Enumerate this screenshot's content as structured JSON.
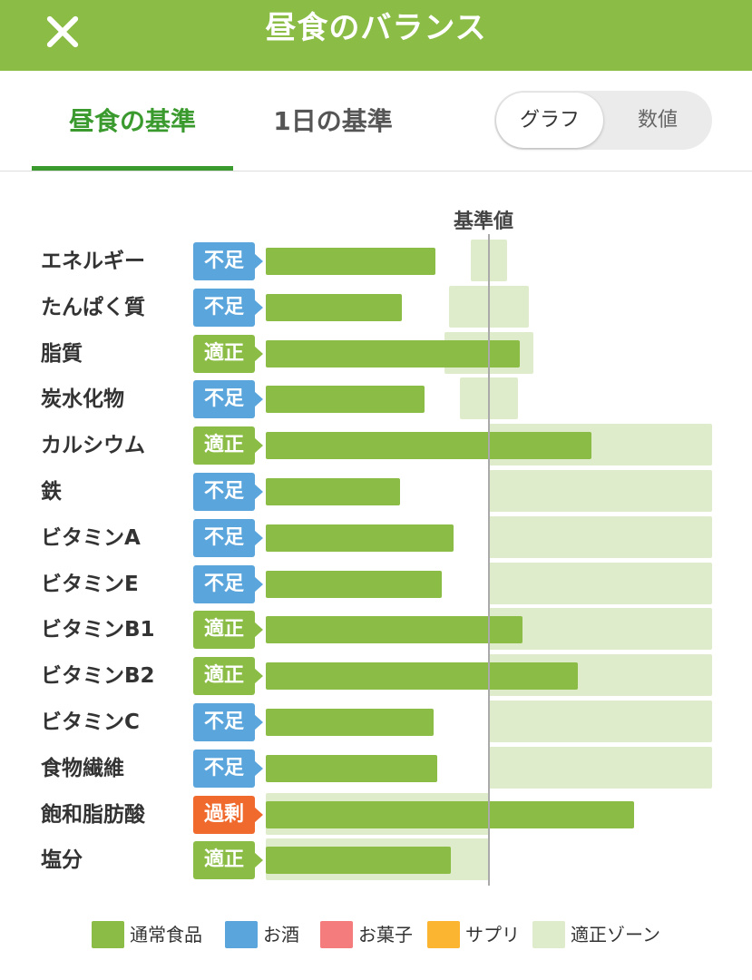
{
  "header": {
    "title": "昼食のバランス"
  },
  "tabs": [
    {
      "label": "昼食の基準",
      "active": true
    },
    {
      "label": "1日の基準",
      "active": false
    }
  ],
  "toggle": {
    "graph_label": "グラフ",
    "value_label": "数値",
    "selected": "グラフ"
  },
  "colors": {
    "header": "#8bbc45",
    "accent": "#3a9a2e",
    "shortage": "#5aa5dc",
    "adequate": "#8bbc45",
    "excess": "#f06a2e",
    "zone": "#dfeccc"
  },
  "chart_data": {
    "type": "bar",
    "reference_label": "基準値",
    "reference_value": 100,
    "categories": [
      "エネルギー",
      "たんぱく質",
      "脂質",
      "炭水化物",
      "カルシウム",
      "鉄",
      "ビタミンA",
      "ビタミンE",
      "ビタミンB1",
      "ビタミンB2",
      "ビタミンC",
      "食物繊維",
      "飽和脂肪酸",
      "塩分"
    ],
    "status": [
      "不足",
      "不足",
      "適正",
      "不足",
      "適正",
      "不足",
      "不足",
      "不足",
      "適正",
      "適正",
      "不足",
      "不足",
      "過剰",
      "適正"
    ],
    "values": [
      76,
      61,
      114,
      71,
      146,
      60,
      84,
      79,
      115,
      140,
      75,
      77,
      165,
      83
    ],
    "zones": [
      [
        92,
        108
      ],
      [
        82,
        118
      ],
      [
        80,
        120
      ],
      [
        87,
        113
      ],
      [
        100,
        200
      ],
      [
        100,
        200
      ],
      [
        100,
        200
      ],
      [
        100,
        200
      ],
      [
        100,
        200
      ],
      [
        100,
        200
      ],
      [
        100,
        200
      ],
      [
        100,
        200
      ],
      [
        0,
        100
      ],
      [
        0,
        100
      ]
    ],
    "series": [
      {
        "name": "通常食品"
      },
      {
        "name": "お酒"
      },
      {
        "name": "お菓子"
      },
      {
        "name": "サプリ"
      }
    ]
  },
  "legend": [
    {
      "label": "通常食品",
      "color": "#8bbc45"
    },
    {
      "label": "お酒",
      "color": "#5aa5dc"
    },
    {
      "label": "お菓子",
      "color": "#f47c7c"
    },
    {
      "label": "サプリ",
      "color": "#fbb531"
    },
    {
      "label": "適正ゾーン",
      "color": "#dfeccc"
    }
  ]
}
